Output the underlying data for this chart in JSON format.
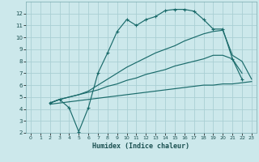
{
  "xlabel": "Humidex (Indice chaleur)",
  "bg_color": "#cce8eb",
  "grid_color": "#aacfd4",
  "line_color": "#1a6b6b",
  "xlim": [
    -0.5,
    23.5
  ],
  "ylim": [
    2,
    13
  ],
  "yticks": [
    2,
    3,
    4,
    5,
    6,
    7,
    8,
    9,
    10,
    11,
    12
  ],
  "xticks": [
    0,
    1,
    2,
    3,
    4,
    5,
    6,
    7,
    8,
    9,
    10,
    11,
    12,
    13,
    14,
    15,
    16,
    17,
    18,
    19,
    20,
    21,
    22,
    23
  ],
  "line1_x": [
    2,
    3,
    4,
    5,
    6,
    7,
    8,
    9,
    10,
    11,
    12,
    13,
    14,
    15,
    16,
    17,
    18,
    19,
    20,
    21,
    22
  ],
  "line1_y": [
    4.5,
    4.8,
    4.1,
    2.1,
    4.1,
    7.0,
    8.7,
    10.5,
    11.5,
    11.0,
    11.5,
    11.75,
    12.25,
    12.35,
    12.35,
    12.2,
    11.5,
    10.7,
    10.7,
    8.2,
    6.5
  ],
  "line2_x": [
    2,
    3,
    5,
    6,
    7,
    8,
    9,
    10,
    11,
    12,
    13,
    14,
    15,
    16,
    17,
    18,
    19,
    20,
    21,
    22,
    23
  ],
  "line2_y": [
    4.5,
    4.8,
    5.2,
    5.5,
    6.0,
    6.5,
    7.0,
    7.5,
    7.9,
    8.3,
    8.7,
    9.0,
    9.3,
    9.7,
    10.0,
    10.3,
    10.5,
    10.6,
    8.5,
    8.0,
    6.5
  ],
  "line3_x": [
    2,
    3,
    4,
    5,
    6,
    7,
    8,
    9,
    10,
    11,
    12,
    13,
    14,
    15,
    16,
    17,
    18,
    19,
    20,
    21,
    22
  ],
  "line3_y": [
    4.5,
    4.8,
    5.0,
    5.2,
    5.4,
    5.6,
    5.9,
    6.1,
    6.4,
    6.6,
    6.9,
    7.1,
    7.3,
    7.6,
    7.8,
    8.0,
    8.2,
    8.5,
    8.5,
    8.2,
    7.0
  ],
  "line4_x": [
    2,
    3,
    4,
    5,
    6,
    7,
    8,
    9,
    10,
    11,
    12,
    13,
    14,
    15,
    16,
    17,
    18,
    19,
    20,
    21,
    22,
    23
  ],
  "line4_y": [
    4.4,
    4.5,
    4.6,
    4.7,
    4.8,
    4.9,
    5.0,
    5.1,
    5.2,
    5.3,
    5.4,
    5.5,
    5.6,
    5.7,
    5.8,
    5.9,
    6.0,
    6.0,
    6.1,
    6.1,
    6.2,
    6.3
  ]
}
